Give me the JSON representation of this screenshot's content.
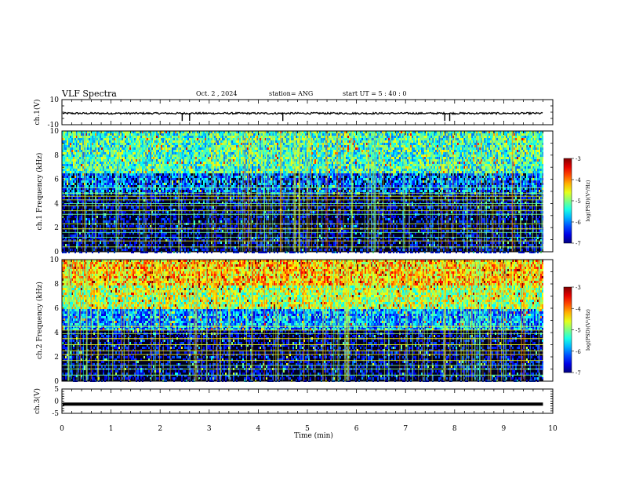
{
  "header": {
    "title": "VLF Spectra",
    "date": "Oct. 2 , 2024",
    "station": "station= ANG",
    "start": "start UT = 5 : 40 : 0"
  },
  "colors": {
    "background": "#ffffff",
    "axis": "#000000",
    "spectrogram_floor": "#000000"
  },
  "chart_data": [
    {
      "type": "line",
      "name": "ch1-waveform",
      "ylabel": "ch.1(V)",
      "ylim": [
        -10,
        10
      ],
      "ytick_labels": [
        "10",
        "-10"
      ],
      "xlim": [
        0,
        10
      ],
      "baseline_V": 0,
      "spikes_min": [
        2.45,
        2.6,
        4.5,
        7.8,
        7.9
      ]
    },
    {
      "type": "heatmap",
      "name": "ch1-spectrogram",
      "ylabel": "ch.1 Frequency (kHz)",
      "ylim": [
        0,
        10
      ],
      "ytick_labels": [
        "0",
        "2",
        "4",
        "6",
        "8",
        "10"
      ],
      "xlim": [
        0,
        10
      ],
      "data_end_min": 9.8,
      "colorbar": {
        "label": "log(PSD)(V²/Hz)",
        "range": [
          -7,
          -3
        ],
        "tick_labels": [
          "-3",
          "-4",
          "-5",
          "-6",
          "-7"
        ]
      },
      "intensity_profile": [
        {
          "from_khz": 0,
          "to_khz": 4.8,
          "log_psd": -6.9
        },
        {
          "from_khz": 4.8,
          "to_khz": 6.5,
          "log_psd": -6.2
        },
        {
          "from_khz": 6.5,
          "to_khz": 10,
          "log_psd": -5.3
        }
      ],
      "bright_lines_khz": [
        0.4,
        0.9,
        1.2,
        1.6,
        1.9,
        2.3,
        3.1,
        3.4,
        3.8,
        4.0,
        4.3,
        4.6,
        4.85,
        5.3
      ]
    },
    {
      "type": "heatmap",
      "name": "ch2-spectrogram",
      "ylabel": "ch.2 Frequency (kHz)",
      "ylim": [
        0,
        10
      ],
      "ytick_labels": [
        "0",
        "2",
        "4",
        "6",
        "8",
        "10"
      ],
      "xlim": [
        0,
        10
      ],
      "data_end_min": 9.8,
      "colorbar": {
        "label": "log(PSD)(V²/Hz)",
        "range": [
          -7,
          -3
        ],
        "tick_labels": [
          "-3",
          "-4",
          "-5",
          "-6",
          "-7"
        ]
      },
      "intensity_profile": [
        {
          "from_khz": 0,
          "to_khz": 4.2,
          "log_psd": -6.9
        },
        {
          "from_khz": 4.2,
          "to_khz": 6.0,
          "log_psd": -5.9
        },
        {
          "from_khz": 6.0,
          "to_khz": 8.0,
          "log_psd": -4.8
        },
        {
          "from_khz": 8.0,
          "to_khz": 10,
          "log_psd": -4.3
        }
      ],
      "bright_lines_khz": [
        0.5,
        1.0,
        1.3,
        1.7,
        2.2,
        2.5,
        3.0,
        3.5,
        3.9,
        4.2,
        4.5
      ]
    },
    {
      "type": "line",
      "name": "ch3-waveform",
      "ylabel": "ch.3(V)",
      "ylim": [
        -5,
        5
      ],
      "ytick_labels": [
        "5",
        "0",
        "-5"
      ],
      "xlim": [
        0,
        10
      ],
      "baseline_V": -1.2
    }
  ],
  "xaxis": {
    "label": "Time (min)",
    "range": [
      0,
      10
    ],
    "tick_labels": [
      "0",
      "1",
      "2",
      "3",
      "4",
      "5",
      "6",
      "7",
      "8",
      "9",
      "10"
    ]
  }
}
